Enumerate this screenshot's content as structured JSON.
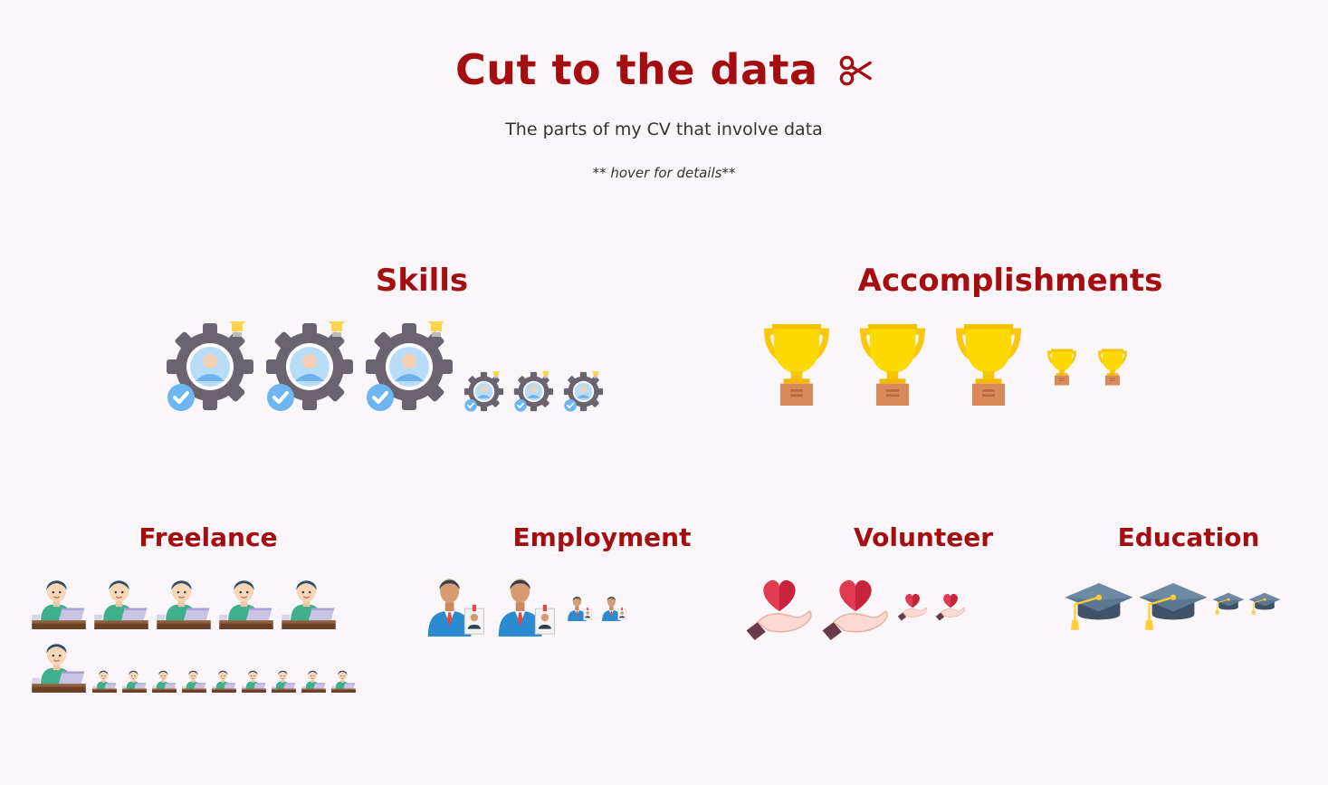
{
  "header": {
    "title": "Cut to the data",
    "subtitle": "The parts of my CV that involve data",
    "hint": "** hover for details**"
  },
  "colors": {
    "background": "#fbf6f9",
    "accent": "#a50e10",
    "text": "#333333"
  },
  "sections": {
    "skills": {
      "label": "Skills",
      "icon": "gear-person-icon",
      "counts": {
        "large": 3,
        "small": 3
      }
    },
    "accomplishments": {
      "label": "Accomplishments",
      "icon": "trophy-icon",
      "counts": {
        "large": 3,
        "small": 2
      }
    },
    "freelance": {
      "label": "Freelance",
      "icon": "laptop-worker-icon",
      "counts": {
        "large": 6,
        "small": 9
      }
    },
    "employment": {
      "label": "Employment",
      "icon": "businessman-icon",
      "counts": {
        "large": 2,
        "small": 2
      }
    },
    "volunteer": {
      "label": "Volunteer",
      "icon": "heart-hand-icon",
      "counts": {
        "large": 2,
        "small": 2
      }
    },
    "education": {
      "label": "Education",
      "icon": "graduation-cap-icon",
      "counts": {
        "large": 2,
        "small": 2
      }
    }
  }
}
